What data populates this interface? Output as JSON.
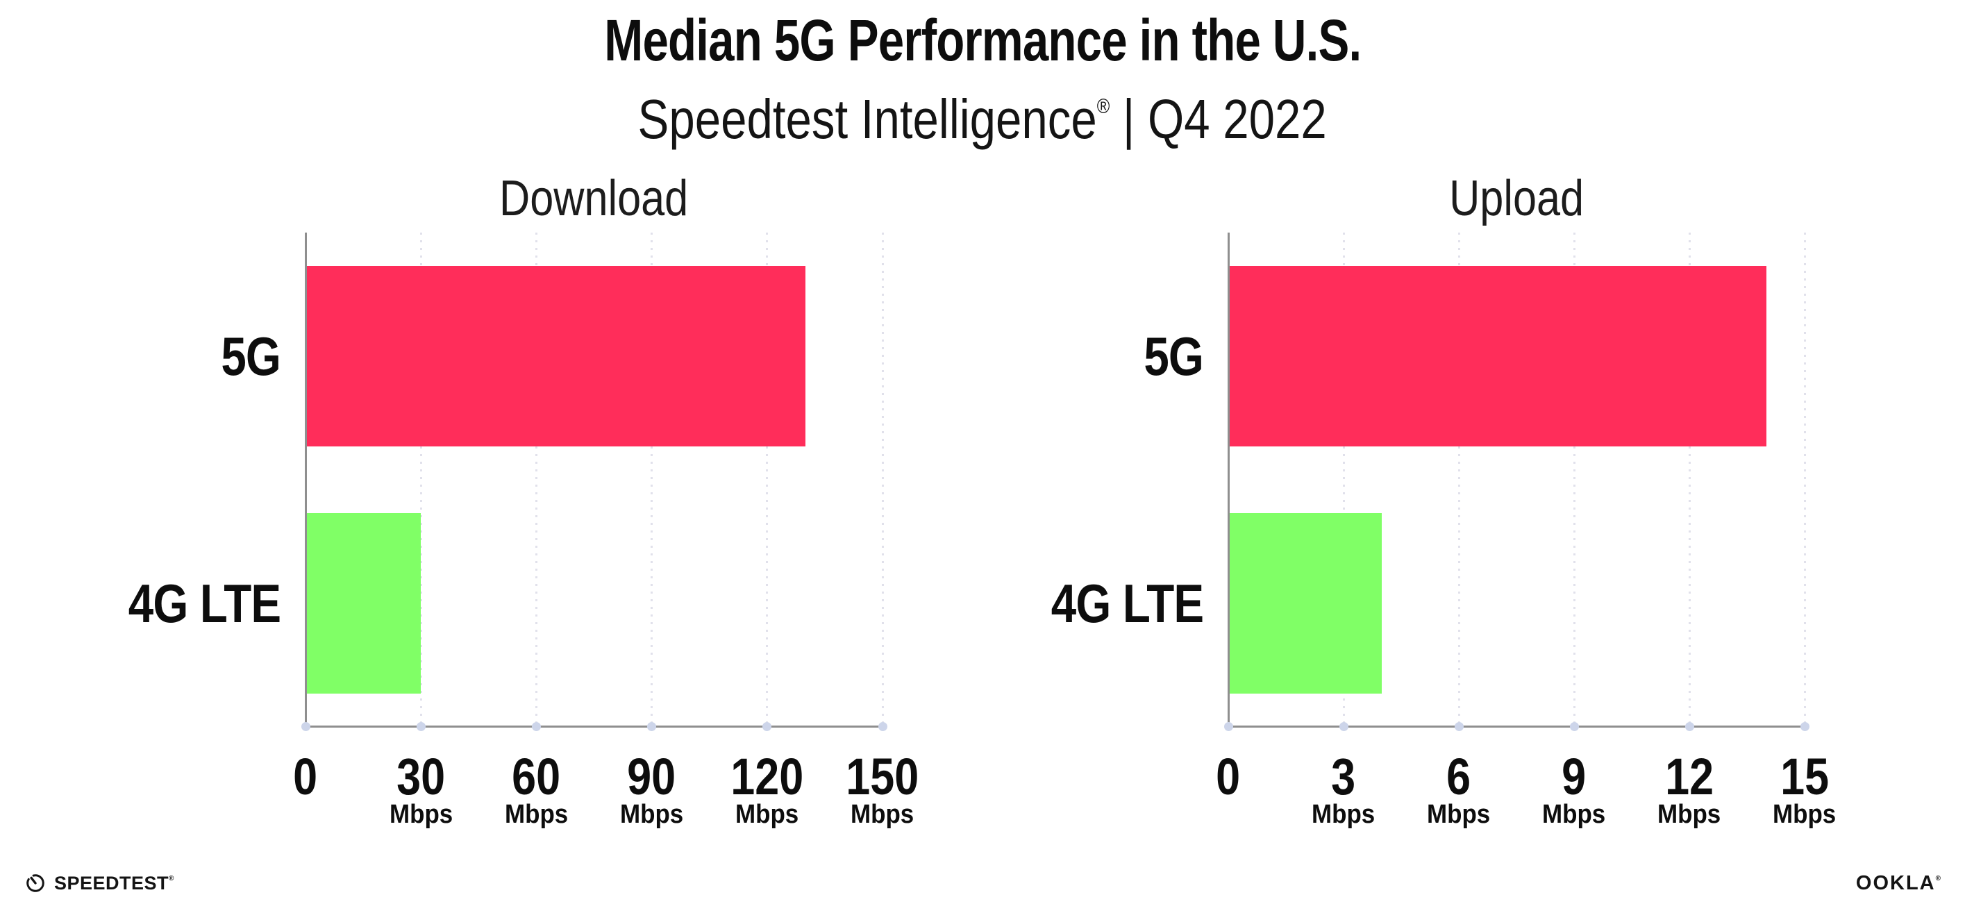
{
  "header": {
    "title": "Median 5G Performance in the U.S.",
    "subtitle": {
      "brand": "Speedtest Intelligence",
      "reg": "®",
      "rest": "| Q4 2022"
    }
  },
  "chart_data": {
    "type": "bar",
    "orientation": "horizontal",
    "figure_title": "Median 5G Performance in the U.S.",
    "figure_subtitle": "Speedtest Intelligence® | Q4 2022",
    "grid": "dotted-vertical",
    "legend": "none",
    "unit": "Mbps",
    "categories": [
      "5G",
      "4G LTE"
    ],
    "charts": [
      {
        "title": "Download",
        "categories": [
          "5G",
          "4G LTE"
        ],
        "values": [
          130,
          30
        ],
        "bar_colors": [
          "#FF2D5A",
          "#80FF66"
        ],
        "xlim": [
          0,
          150
        ],
        "ticks": [
          0,
          30,
          60,
          90,
          120,
          150
        ],
        "tick_unit": "Mbps",
        "unit_on_zero": false
      },
      {
        "title": "Upload",
        "categories": [
          "5G",
          "4G LTE"
        ],
        "values": [
          14,
          4
        ],
        "bar_colors": [
          "#FF2D5A",
          "#80FF66"
        ],
        "xlim": [
          0,
          15
        ],
        "ticks": [
          0,
          3,
          6,
          9,
          12,
          15
        ],
        "tick_unit": "Mbps",
        "unit_on_zero": false
      }
    ]
  },
  "footer": {
    "speedtest": {
      "icon": "speedtest-gauge-icon",
      "label": "SPEEDTEST",
      "reg": "®"
    },
    "ookla": {
      "label": "OOKLA",
      "reg": "®"
    }
  },
  "colors": {
    "bar_red": "#FF2D5A",
    "bar_green": "#80FF66",
    "axis": "#8F8F8F",
    "gridline": "#E1E1EB",
    "tick_dot": "#CDD5EA",
    "text_primary": "#0D0D0D",
    "text_secondary": "#1C1C1C",
    "background": "#FFFFFF"
  }
}
